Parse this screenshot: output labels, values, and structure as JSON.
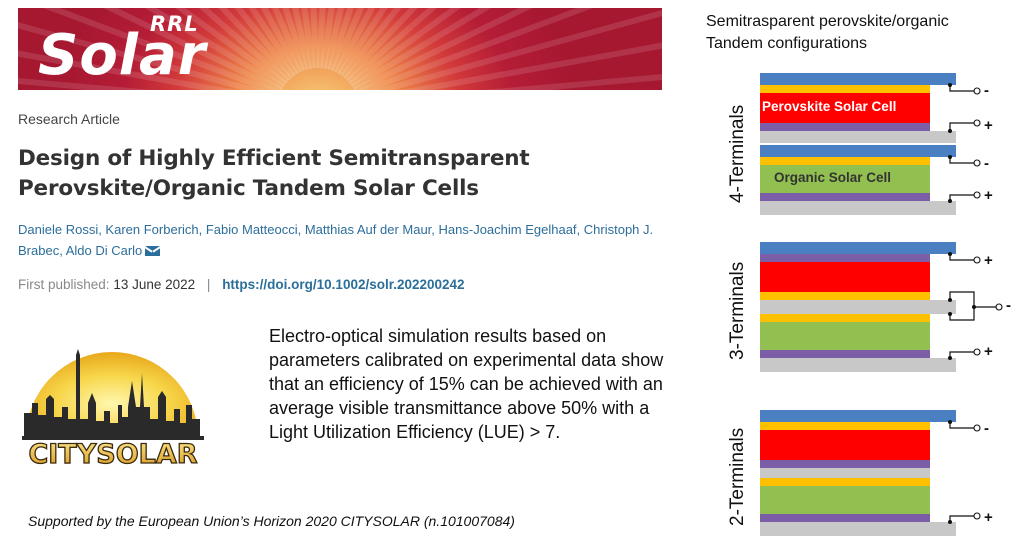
{
  "journal": {
    "brand_top": "RRL",
    "brand_main": "Solar"
  },
  "article": {
    "type": "Research Article",
    "title": "Design of Highly Efficient Semitransparent Perovskite/Organic Tandem Solar Cells",
    "authors": "Daniele Rossi, Karen Forberich, Fabio Matteocci, Matthias Auf der Maur, Hans-Joachim Egelhaaf, Christoph J. Brabec, Aldo Di Carlo",
    "first_published_label": "First published:",
    "first_published_date": "13 June 2022",
    "separator": "|",
    "doi": "https://doi.org/10.1002/solr.202200242"
  },
  "summary": "Electro-optical simulation results based on parameters calibrated on experimental data show that an efficiency of 15% can be achieved with an average visible transmittance above 50% with a Light Utilization Efficiency (LUE)  > 7.",
  "logo": {
    "text": "CITYSOLAR"
  },
  "funding": "Supported by the European Union’s Horizon 2020 CITYSOLAR (n.101007084)",
  "diagram": {
    "title": "Semitrasparent perovskite/organic Tandem configurations",
    "configs": [
      {
        "label": "4-Terminals",
        "perovskite_label": "Perovskite Solar Cell",
        "organic_label": "Organic Solar Cell",
        "signs": [
          "-",
          "+",
          "-",
          "+"
        ]
      },
      {
        "label": "3-Terminals",
        "signs": [
          "+",
          "-",
          "+"
        ]
      },
      {
        "label": "2-Terminals",
        "signs": [
          "-",
          "+"
        ]
      }
    ],
    "colors": {
      "blue": "#4a7fc1",
      "yellow": "#ffc000",
      "red": "#ff0000",
      "purple": "#7b5ea7",
      "green": "#92c050",
      "gray": "#c8c8c8"
    }
  }
}
